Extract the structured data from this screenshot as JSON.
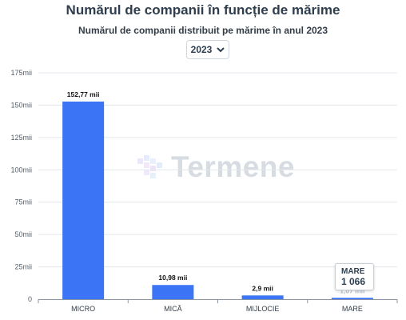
{
  "header": {
    "title": "Numărul de companii în funcție de mărime",
    "subtitle": "Numărul de companii distribuit pe mărime în anul 2023"
  },
  "year_select": {
    "value": "2023",
    "icon": "chevron-down-icon"
  },
  "watermark": {
    "text": "Termene"
  },
  "tooltip": {
    "category": "MARE",
    "value": "1 066"
  },
  "colors": {
    "bar": "#3b74f5",
    "grid": "#e3e7ec",
    "axis": "#8a96a3"
  },
  "chart_data": {
    "type": "bar",
    "title": "Numărul de companii în funcție de mărime",
    "subtitle": "Numărul de companii distribuit pe mărime în anul 2023",
    "categories": [
      "MICRO",
      "MICĂ",
      "MIJLOCIE",
      "MARE"
    ],
    "values": [
      152770,
      10980,
      2900,
      1066
    ],
    "data_labels": [
      "152,77 mii",
      "10,98 mii",
      "2,9 mii",
      "1,07 mii"
    ],
    "y_ticks": [
      0,
      25000,
      50000,
      75000,
      100000,
      125000,
      150000,
      175000
    ],
    "y_tick_labels": [
      "0",
      "25mii",
      "50mii",
      "75mii",
      "100mii",
      "125mii",
      "150mii",
      "175mii"
    ],
    "ylim": [
      0,
      175000
    ],
    "grid": true,
    "legend": "none"
  }
}
